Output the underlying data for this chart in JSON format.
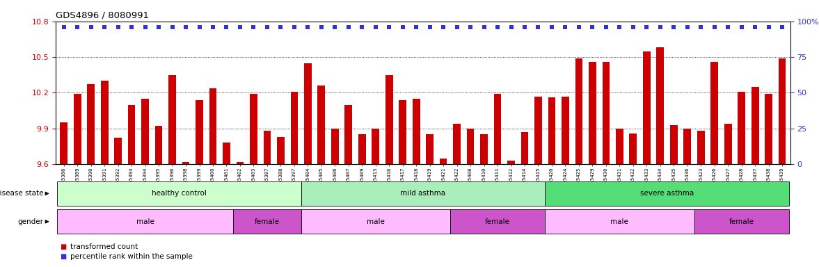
{
  "title": "GDS4896 / 8080991",
  "samples": [
    "GSM665386",
    "GSM665389",
    "GSM665390",
    "GSM665391",
    "GSM665392",
    "GSM665393",
    "GSM665394",
    "GSM665395",
    "GSM665396",
    "GSM665398",
    "GSM665399",
    "GSM665400",
    "GSM665401",
    "GSM665402",
    "GSM665403",
    "GSM665387",
    "GSM665388",
    "GSM665397",
    "GSM665404",
    "GSM665405",
    "GSM665406",
    "GSM665407",
    "GSM665409",
    "GSM665413",
    "GSM665416",
    "GSM665417",
    "GSM665418",
    "GSM665419",
    "GSM665421",
    "GSM665422",
    "GSM665408",
    "GSM665410",
    "GSM665411",
    "GSM665412",
    "GSM665414",
    "GSM665415",
    "GSM665420",
    "GSM665424",
    "GSM665425",
    "GSM665429",
    "GSM665430",
    "GSM665431",
    "GSM665432",
    "GSM665433",
    "GSM665434",
    "GSM665435",
    "GSM665436",
    "GSM665423",
    "GSM665426",
    "GSM665427",
    "GSM665428",
    "GSM665437",
    "GSM665438",
    "GSM665439"
  ],
  "bar_values": [
    9.95,
    10.19,
    10.27,
    10.3,
    9.82,
    10.1,
    10.15,
    9.92,
    10.35,
    9.62,
    10.14,
    10.24,
    9.78,
    9.62,
    10.19,
    9.88,
    9.83,
    10.21,
    10.45,
    10.26,
    9.9,
    10.1,
    9.85,
    9.9,
    10.35,
    10.14,
    10.15,
    9.85,
    9.65,
    9.94,
    9.9,
    9.85,
    10.19,
    9.63,
    9.87,
    10.17,
    10.16,
    10.17,
    10.49,
    10.46,
    10.46,
    9.9,
    9.86,
    10.55,
    10.58,
    9.93,
    9.9,
    9.88,
    10.46,
    9.94,
    10.21,
    10.25,
    10.19,
    10.49
  ],
  "bar_color": "#cc0000",
  "percentile_color": "#3333cc",
  "ymin": 9.6,
  "ymax": 10.8,
  "yticks": [
    9.6,
    9.9,
    10.2,
    10.5,
    10.8
  ],
  "ytick_labels": [
    "9.6",
    "9.9",
    "10.2",
    "10.5",
    "10.8"
  ],
  "right_yticks": [
    0,
    25,
    50,
    75,
    100
  ],
  "right_ytick_labels": [
    "0",
    "25",
    "50",
    "75",
    "100%"
  ],
  "disease_groups": [
    {
      "label": "healthy control",
      "start": 0,
      "end": 18,
      "color": "#ccffcc"
    },
    {
      "label": "mild asthma",
      "start": 18,
      "end": 36,
      "color": "#aaeebb"
    },
    {
      "label": "severe asthma",
      "start": 36,
      "end": 54,
      "color": "#55dd77"
    }
  ],
  "gender_groups": [
    {
      "label": "male",
      "start": 0,
      "end": 13,
      "color": "#ffbbff"
    },
    {
      "label": "female",
      "start": 13,
      "end": 18,
      "color": "#cc55cc"
    },
    {
      "label": "male",
      "start": 18,
      "end": 29,
      "color": "#ffbbff"
    },
    {
      "label": "female",
      "start": 29,
      "end": 36,
      "color": "#cc55cc"
    },
    {
      "label": "male",
      "start": 36,
      "end": 47,
      "color": "#ffbbff"
    },
    {
      "label": "female",
      "start": 47,
      "end": 54,
      "color": "#cc55cc"
    }
  ]
}
